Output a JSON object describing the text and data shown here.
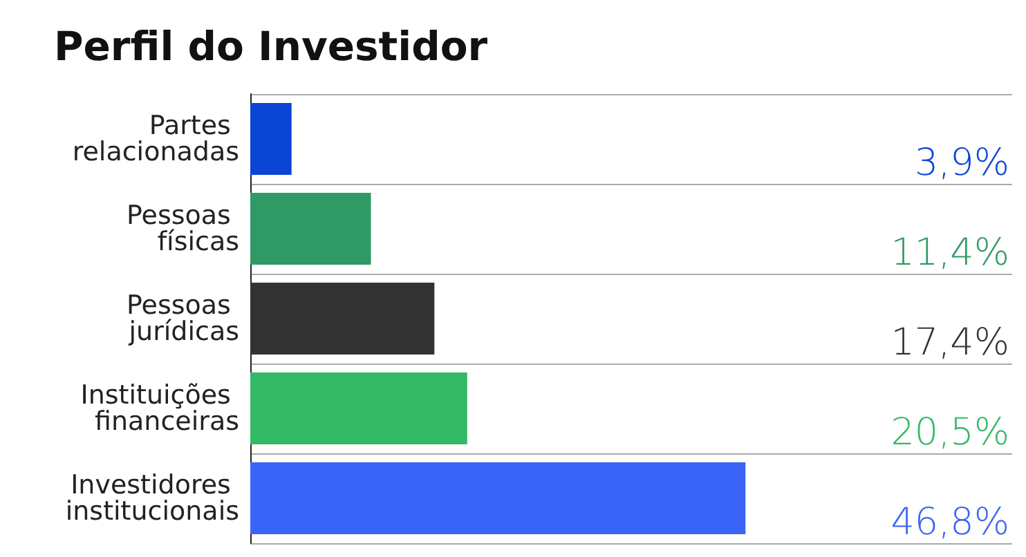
{
  "chart_data": {
    "type": "bar",
    "orientation": "horizontal",
    "title": "Perfil do Investidor",
    "categories": [
      "Partes relacionadas",
      "Pessoas físicas",
      "Pessoas jurídicas",
      "Instituições financeiras",
      "Investidores institucionais"
    ],
    "values": [
      3.9,
      11.4,
      17.4,
      20.5,
      46.8
    ],
    "colors": [
      "#0b45d6",
      "#2f9a66",
      "#333333",
      "#33b966",
      "#3a64f7"
    ],
    "value_labels": [
      "3,9%",
      "11,4%",
      "17,4%",
      "20,5%",
      "46,8%"
    ],
    "xlim": [
      0,
      72
    ],
    "grid": "y",
    "tick_labels": "y"
  }
}
